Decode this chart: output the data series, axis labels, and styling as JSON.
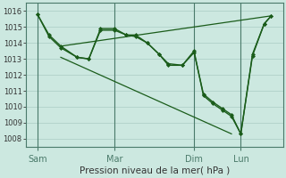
{
  "background_color": "#cce8e0",
  "grid_color": "#aaccc4",
  "line_color": "#1a5c1a",
  "vline_color": "#4a7a6a",
  "xlabel": "Pression niveau de la mer( hPa )",
  "xlabel_fontsize": 7.5,
  "ylim": [
    1007.5,
    1016.5
  ],
  "yticks": [
    1008,
    1009,
    1010,
    1011,
    1012,
    1013,
    1014,
    1015,
    1016
  ],
  "ytick_fontsize": 6,
  "xtick_labels": [
    "Sam",
    "Mar",
    "Dim",
    "Lun"
  ],
  "xtick_fontsize": 7,
  "vline_x": [
    0.0,
    0.33,
    0.67,
    0.87
  ],
  "xlim": [
    -0.05,
    1.05
  ],
  "line1": {
    "x": [
      0.0,
      0.05,
      0.1,
      0.17,
      0.22,
      0.27,
      0.33,
      0.38,
      0.42,
      0.47,
      0.52,
      0.56,
      0.62,
      0.67,
      0.71,
      0.75,
      0.79,
      0.83,
      0.87,
      0.92,
      0.97,
      1.0
    ],
    "y": [
      1015.8,
      1014.5,
      1013.8,
      1013.1,
      1013.0,
      1014.8,
      1014.8,
      1014.5,
      1014.5,
      1014.0,
      1013.3,
      1012.7,
      1012.6,
      1013.5,
      1010.7,
      1010.2,
      1009.8,
      1009.4,
      1008.3,
      1013.3,
      1015.2,
      1015.7
    ],
    "marker": "D",
    "markersize": 2.0,
    "linewidth": 1.0
  },
  "line2": {
    "x": [
      0.0,
      0.05,
      0.1,
      0.17,
      0.22,
      0.27,
      0.33,
      0.38,
      0.42,
      0.47,
      0.52,
      0.56,
      0.62,
      0.67,
      0.71,
      0.75,
      0.79,
      0.83,
      0.87,
      0.92,
      0.97,
      1.0
    ],
    "y": [
      1015.8,
      1014.4,
      1013.7,
      1013.1,
      1013.0,
      1014.9,
      1014.9,
      1014.5,
      1014.4,
      1014.0,
      1013.3,
      1012.6,
      1012.6,
      1013.4,
      1010.8,
      1010.3,
      1009.9,
      1009.5,
      1008.3,
      1013.2,
      1015.2,
      1015.7
    ],
    "marker": "D",
    "markersize": 2.0,
    "linewidth": 1.0
  },
  "diag1": {
    "x": [
      0.1,
      1.0
    ],
    "y": [
      1013.8,
      1015.7
    ],
    "linewidth": 0.9
  },
  "diag2": {
    "x": [
      0.1,
      0.83
    ],
    "y": [
      1013.1,
      1008.3
    ],
    "linewidth": 0.9
  }
}
